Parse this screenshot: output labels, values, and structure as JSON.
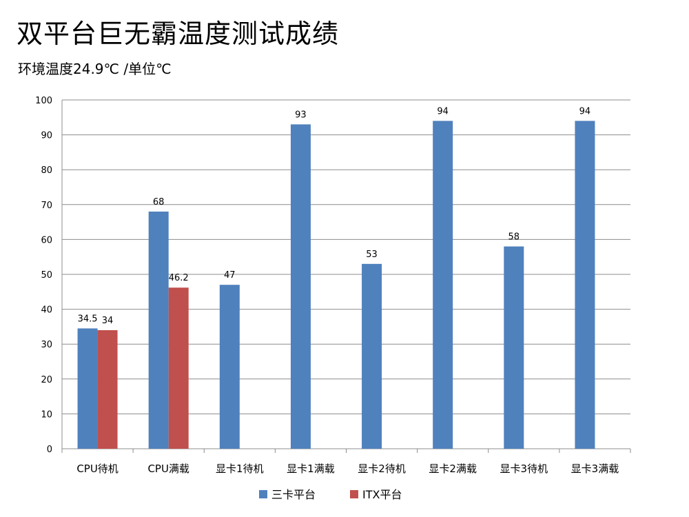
{
  "title": "双平台巨无霸温度测试成绩",
  "subtitle": "环境温度24.9℃ /单位℃",
  "chart_data": {
    "type": "bar",
    "categories": [
      "CPU待机",
      "CPU满载",
      "显卡1待机",
      "显卡1满载",
      "显卡2待机",
      "显卡2满载",
      "显卡3待机",
      "显卡3满载"
    ],
    "series": [
      {
        "name": "三卡平台",
        "color": "#4f81bd",
        "values": [
          34.5,
          68,
          47,
          93,
          53,
          94,
          58,
          94
        ]
      },
      {
        "name": "ITX平台",
        "color": "#c0504d",
        "values": [
          34,
          46.2,
          null,
          null,
          null,
          null,
          null,
          null
        ]
      }
    ],
    "ylim": [
      0,
      100
    ],
    "yticks": [
      0,
      10,
      20,
      30,
      40,
      50,
      60,
      70,
      80,
      90,
      100
    ],
    "grid": true,
    "legend_position": "bottom"
  }
}
